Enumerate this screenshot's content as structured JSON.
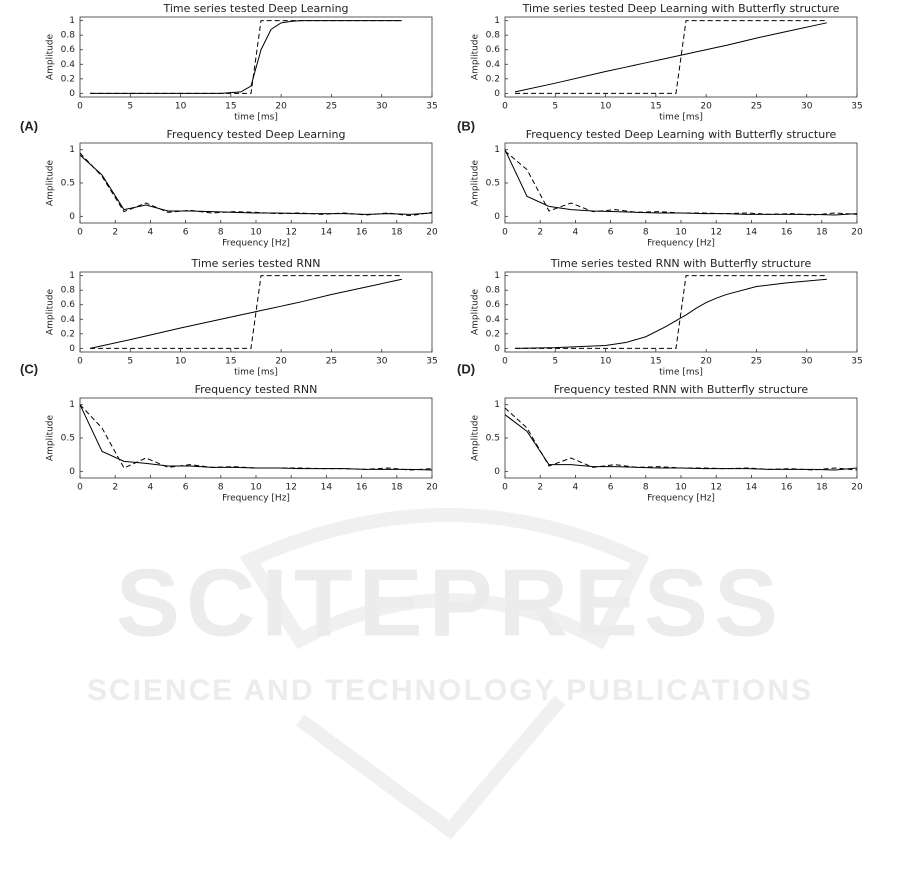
{
  "panel_labels": [
    "(A)",
    "(B)",
    "(C)",
    "(D)"
  ],
  "watermark": {
    "title": "SCITEPRESS",
    "subtitle": "SCIENCE AND TECHNOLOGY PUBLICATIONS"
  },
  "chart_data": [
    {
      "type": "line",
      "title": "Time series tested Deep Learning",
      "xlabel": "time [ms]",
      "ylabel": "Amplitude",
      "x": [
        1,
        5,
        10,
        12,
        14,
        16,
        17,
        18,
        19,
        20,
        21,
        22,
        25,
        28,
        32
      ],
      "series": [
        {
          "color": "#000",
          "dash": false,
          "values": [
            0,
            0,
            0,
            0,
            0,
            0.02,
            0.1,
            0.6,
            0.88,
            0.97,
            0.99,
            1,
            1,
            1,
            1
          ]
        },
        {
          "color": "#000",
          "dash": true,
          "values": [
            0,
            0,
            0,
            0,
            0,
            0,
            0,
            1,
            1,
            1,
            1,
            1,
            1,
            1,
            1
          ]
        }
      ],
      "xlim": [
        0,
        35
      ],
      "xticks": [
        0,
        5,
        10,
        15,
        20,
        25,
        30,
        35
      ],
      "ylim": [
        -0.05,
        1.05
      ],
      "yticks": [
        0,
        0.2,
        0.4,
        0.6,
        0.8,
        1
      ]
    },
    {
      "type": "line",
      "title": "Time series tested Deep Learning with Butterfly structure",
      "xlabel": "time [ms]",
      "ylabel": "Amplitude",
      "x": [
        1,
        5,
        10,
        12,
        14,
        16,
        17,
        18,
        19,
        20,
        21,
        22,
        25,
        28,
        32
      ],
      "series": [
        {
          "color": "#000",
          "dash": false,
          "values": [
            0.02,
            0.14,
            0.3,
            0.36,
            0.42,
            0.48,
            0.51,
            0.54,
            0.57,
            0.6,
            0.63,
            0.66,
            0.76,
            0.85,
            0.97
          ]
        },
        {
          "color": "#000",
          "dash": true,
          "values": [
            0,
            0,
            0,
            0,
            0,
            0,
            0,
            1,
            1,
            1,
            1,
            1,
            1,
            1,
            1
          ]
        }
      ],
      "xlim": [
        0,
        35
      ],
      "xticks": [
        0,
        5,
        10,
        15,
        20,
        25,
        30,
        35
      ],
      "ylim": [
        -0.05,
        1.05
      ],
      "yticks": [
        0,
        0.2,
        0.4,
        0.6,
        0.8,
        1
      ]
    },
    {
      "type": "line",
      "title": "Frequency tested Deep Learning",
      "xlabel": "Frequency [Hz]",
      "ylabel": "Amplitude",
      "x": [
        0,
        1.25,
        2.5,
        3.75,
        5,
        6.25,
        7.5,
        8.75,
        10,
        11.25,
        12.5,
        13.75,
        15,
        16.25,
        17.5,
        18.75,
        20
      ],
      "series": [
        {
          "color": "#000",
          "dash": false,
          "values": [
            0.92,
            0.62,
            0.1,
            0.17,
            0.08,
            0.08,
            0.07,
            0.06,
            0.05,
            0.05,
            0.04,
            0.04,
            0.04,
            0.03,
            0.04,
            0.03,
            0.05
          ]
        },
        {
          "color": "#000",
          "dash": true,
          "values": [
            0.95,
            0.6,
            0.07,
            0.2,
            0.06,
            0.09,
            0.05,
            0.07,
            0.06,
            0.04,
            0.05,
            0.03,
            0.05,
            0.02,
            0.05,
            0.01,
            0.06
          ]
        }
      ],
      "xlim": [
        0,
        20
      ],
      "xticks": [
        0,
        2,
        4,
        6,
        8,
        10,
        12,
        14,
        16,
        18,
        20
      ],
      "ylim": [
        -0.1,
        1.1
      ],
      "yticks": [
        0,
        0.5,
        1
      ]
    },
    {
      "type": "line",
      "title": "Frequency tested Deep Learning with Butterfly structure",
      "xlabel": "Frequency [Hz]",
      "ylabel": "Amplitude",
      "x": [
        0,
        1.25,
        2.5,
        3.75,
        5,
        6.25,
        7.5,
        8.75,
        10,
        11.25,
        12.5,
        13.75,
        15,
        16.25,
        17.5,
        18.75,
        20
      ],
      "series": [
        {
          "color": "#000",
          "dash": false,
          "values": [
            1,
            0.3,
            0.15,
            0.1,
            0.08,
            0.07,
            0.06,
            0.05,
            0.05,
            0.04,
            0.04,
            0.03,
            0.03,
            0.03,
            0.03,
            0.02,
            0.04
          ]
        },
        {
          "color": "#000",
          "dash": true,
          "values": [
            0.98,
            0.7,
            0.08,
            0.2,
            0.07,
            0.1,
            0.06,
            0.07,
            0.05,
            0.05,
            0.04,
            0.05,
            0.03,
            0.04,
            0.02,
            0.05,
            0.03
          ]
        }
      ],
      "xlim": [
        0,
        20
      ],
      "xticks": [
        0,
        2,
        4,
        6,
        8,
        10,
        12,
        14,
        16,
        18,
        20
      ],
      "ylim": [
        -0.1,
        1.1
      ],
      "yticks": [
        0,
        0.5,
        1
      ]
    },
    {
      "type": "line",
      "title": "Time series tested RNN",
      "xlabel": "time [ms]",
      "ylabel": "Amplitude",
      "x": [
        1,
        5,
        10,
        12,
        14,
        16,
        17,
        18,
        19,
        20,
        21,
        22,
        25,
        28,
        32
      ],
      "series": [
        {
          "color": "#000",
          "dash": false,
          "values": [
            0,
            0.12,
            0.28,
            0.34,
            0.4,
            0.46,
            0.49,
            0.52,
            0.55,
            0.58,
            0.61,
            0.64,
            0.74,
            0.83,
            0.95
          ]
        },
        {
          "color": "#000",
          "dash": true,
          "values": [
            0,
            0,
            0,
            0,
            0,
            0,
            0,
            1,
            1,
            1,
            1,
            1,
            1,
            1,
            1
          ]
        }
      ],
      "xlim": [
        0,
        35
      ],
      "xticks": [
        0,
        5,
        10,
        15,
        20,
        25,
        30,
        35
      ],
      "ylim": [
        -0.05,
        1.05
      ],
      "yticks": [
        0,
        0.2,
        0.4,
        0.6,
        0.8,
        1
      ]
    },
    {
      "type": "line",
      "title": "Time series tested RNN with Butterfly structure",
      "xlabel": "time [ms]",
      "ylabel": "Amplitude",
      "x": [
        1,
        5,
        10,
        12,
        14,
        16,
        17,
        18,
        19,
        20,
        21,
        22,
        25,
        28,
        32
      ],
      "series": [
        {
          "color": "#000",
          "dash": false,
          "values": [
            0,
            0.01,
            0.04,
            0.08,
            0.16,
            0.3,
            0.38,
            0.46,
            0.55,
            0.63,
            0.69,
            0.74,
            0.85,
            0.9,
            0.95
          ]
        },
        {
          "color": "#000",
          "dash": true,
          "values": [
            0,
            0,
            0,
            0,
            0,
            0,
            0,
            1,
            1,
            1,
            1,
            1,
            1,
            1,
            1
          ]
        }
      ],
      "xlim": [
        0,
        35
      ],
      "xticks": [
        0,
        5,
        10,
        15,
        20,
        25,
        30,
        35
      ],
      "ylim": [
        -0.05,
        1.05
      ],
      "yticks": [
        0,
        0.2,
        0.4,
        0.6,
        0.8,
        1
      ]
    },
    {
      "type": "line",
      "title": "Frequency tested RNN",
      "xlabel": "Frequency [Hz]",
      "ylabel": "Amplitude",
      "x": [
        0,
        1.25,
        2.5,
        3.75,
        5,
        6.25,
        7.5,
        8.75,
        10,
        11.25,
        12.5,
        13.75,
        15,
        16.25,
        17.5,
        18.75,
        20
      ],
      "series": [
        {
          "color": "#000",
          "dash": false,
          "values": [
            1,
            0.3,
            0.15,
            0.12,
            0.08,
            0.08,
            0.06,
            0.06,
            0.05,
            0.05,
            0.04,
            0.04,
            0.04,
            0.03,
            0.03,
            0.03,
            0.02
          ]
        },
        {
          "color": "#000",
          "dash": true,
          "values": [
            1,
            0.65,
            0.05,
            0.2,
            0.06,
            0.1,
            0.06,
            0.07,
            0.05,
            0.05,
            0.05,
            0.04,
            0.04,
            0.03,
            0.05,
            0.02,
            0.04
          ]
        }
      ],
      "xlim": [
        0,
        20
      ],
      "xticks": [
        0,
        2,
        4,
        6,
        8,
        10,
        12,
        14,
        16,
        18,
        20
      ],
      "ylim": [
        -0.1,
        1.1
      ],
      "yticks": [
        0,
        0.5,
        1
      ]
    },
    {
      "type": "line",
      "title": "Frequency tested RNN with Butterfly structure",
      "xlabel": "Frequency [Hz]",
      "ylabel": "Amplitude",
      "x": [
        0,
        1.25,
        2.5,
        3.75,
        5,
        6.25,
        7.5,
        8.75,
        10,
        11.25,
        12.5,
        13.75,
        15,
        16.25,
        17.5,
        18.75,
        20
      ],
      "series": [
        {
          "color": "#000",
          "dash": false,
          "values": [
            0.85,
            0.6,
            0.1,
            0.1,
            0.07,
            0.07,
            0.06,
            0.05,
            0.05,
            0.04,
            0.04,
            0.04,
            0.03,
            0.03,
            0.03,
            0.02,
            0.05
          ]
        },
        {
          "color": "#000",
          "dash": true,
          "values": [
            0.95,
            0.65,
            0.08,
            0.2,
            0.06,
            0.1,
            0.06,
            0.07,
            0.05,
            0.05,
            0.04,
            0.05,
            0.03,
            0.04,
            0.02,
            0.05,
            0.02
          ]
        }
      ],
      "xlim": [
        0,
        20
      ],
      "xticks": [
        0,
        2,
        4,
        6,
        8,
        10,
        12,
        14,
        16,
        18,
        20
      ],
      "ylim": [
        -0.1,
        1.1
      ],
      "yticks": [
        0,
        0.5,
        1
      ]
    }
  ]
}
